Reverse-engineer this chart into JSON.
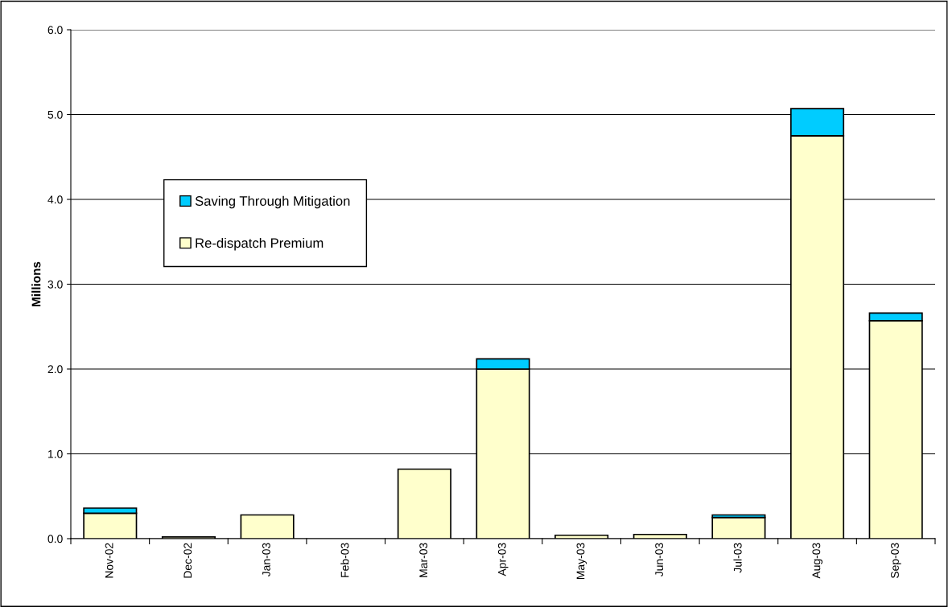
{
  "chart_data": {
    "type": "bar",
    "ylabel": "Millions",
    "stacked": true,
    "categories": [
      "Nov-02",
      "Dec-02",
      "Jan-03",
      "Feb-03",
      "Mar-03",
      "Apr-03",
      "May-03",
      "Jun-03",
      "Jul-03",
      "Aug-03",
      "Sep-03"
    ],
    "series": [
      {
        "name": "Re-dispatch Premium",
        "color": "#ffffcc",
        "values": [
          0.3,
          0.02,
          0.28,
          null,
          0.82,
          2.0,
          0.04,
          0.05,
          0.25,
          4.75,
          2.57
        ]
      },
      {
        "name": "Saving Through Mitigation",
        "color": "#00ccff",
        "values": [
          0.06,
          null,
          null,
          null,
          null,
          0.12,
          null,
          null,
          0.03,
          0.32,
          0.09
        ]
      }
    ],
    "ylim": [
      0,
      6.0
    ],
    "yticks": [
      {
        "value": 0,
        "label": "0.0"
      },
      {
        "value": 1,
        "label": "1.0"
      },
      {
        "value": 2,
        "label": "2.0"
      },
      {
        "value": 3,
        "label": "3.0"
      },
      {
        "value": 4,
        "label": "4.0"
      },
      {
        "value": 5,
        "label": "5.0"
      },
      {
        "value": 6,
        "label": "6.0"
      }
    ],
    "grid": "y",
    "legend": "left"
  }
}
